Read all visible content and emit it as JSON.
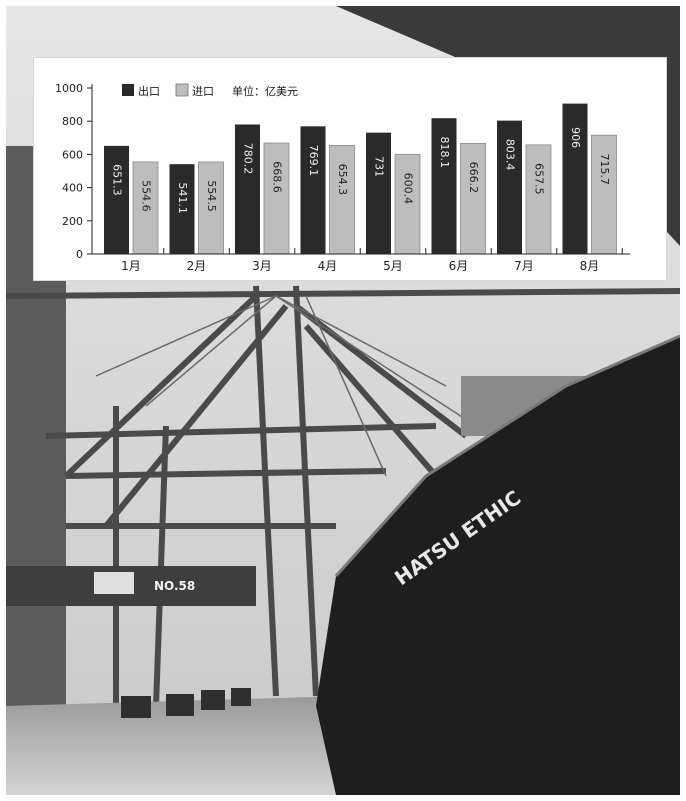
{
  "photo": {
    "ship_name": "HATSU ETHIC",
    "crane_label": "NO.58"
  },
  "chart_data": {
    "type": "bar",
    "categories": [
      "1月",
      "2月",
      "3月",
      "4月",
      "5月",
      "6月",
      "7月",
      "8月"
    ],
    "series": [
      {
        "name": "出口",
        "color": "#2a2a2a",
        "values": [
          651.3,
          541.1,
          780.2,
          769.1,
          731,
          818.1,
          803.4,
          906
        ]
      },
      {
        "name": "进口",
        "color": "#bdbdbd",
        "values": [
          554.6,
          554.5,
          668.6,
          654.3,
          600.4,
          666.2,
          657.5,
          715.7
        ]
      }
    ],
    "value_labels": [
      [
        "651.3",
        "541.1",
        "780.2",
        "769.1",
        "731",
        "818.1",
        "803.4",
        "906"
      ],
      [
        "554.6",
        "554.5",
        "668.6",
        "654.3",
        "600.4",
        "666.2",
        "657.5",
        "715.7"
      ]
    ],
    "unit_text": "单位：亿美元",
    "yticks": [
      0,
      200,
      400,
      600,
      800,
      1000
    ],
    "ylim": [
      0,
      1000
    ],
    "legend_position": "top-left",
    "grid": false
  }
}
